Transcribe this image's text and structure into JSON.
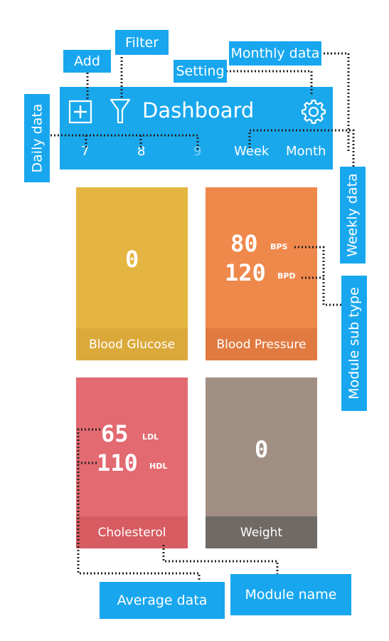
{
  "app_bar": {
    "title": "Dashboard",
    "days": [
      "7",
      "8",
      "9"
    ],
    "ranges": [
      "Week",
      "Month"
    ],
    "icons": {
      "add": "plus-box-icon",
      "filter": "funnel-icon",
      "settings": "gear-icon"
    }
  },
  "tiles": {
    "blood_glucose": {
      "value": "0",
      "name": "Blood Glucose"
    },
    "blood_pressure": {
      "value_1": "80",
      "unit_1": "BPS",
      "value_2": "120",
      "unit_2": "BPD",
      "name": "Blood Pressure"
    },
    "cholesterol": {
      "value_1": "65",
      "unit_1": "LDL",
      "value_2": "110",
      "unit_2": "HDL",
      "name": "Cholesterol"
    },
    "weight": {
      "value": "0",
      "name": "Weight"
    }
  },
  "callouts": {
    "add": "Add",
    "filter": "Filter",
    "setting": "Setting",
    "monthly_data": "Monthly data",
    "daily_data": "Daily data",
    "weekly_data": "Weekly data",
    "module_sub_type": "Module sub type",
    "average_data": "Average data",
    "module_name": "Module name"
  },
  "colors": {
    "callout": "#18a7ef",
    "app_bar": "#1aa8ec",
    "glucose": "#e5b541",
    "glucose_footer": "#dba93a",
    "pressure": "#ef884b",
    "pressure_footer": "#e17a40",
    "cholesterol": "#e26a70",
    "cholesterol_footer": "#d65c62",
    "weight": "#a28f83",
    "weight_footer": "#6f6a66",
    "day_inactive": "#7fd0f6"
  }
}
